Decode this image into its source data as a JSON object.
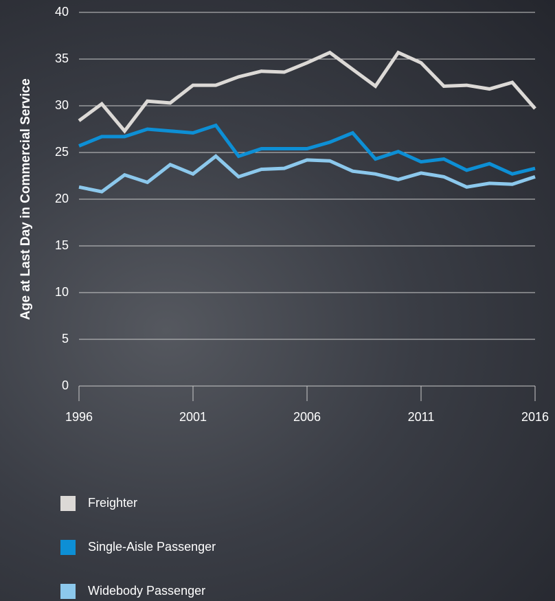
{
  "chart_data": {
    "type": "line",
    "y_label": "Age at Last Day in Commercial Service",
    "x": [
      1996,
      1997,
      1998,
      1999,
      2000,
      2001,
      2002,
      2003,
      2004,
      2005,
      2006,
      2007,
      2008,
      2009,
      2010,
      2011,
      2012,
      2013,
      2014,
      2015,
      2016
    ],
    "xlim": [
      1996,
      2016
    ],
    "xticks": [
      1996,
      2001,
      2006,
      2011,
      2016
    ],
    "ylim": [
      0,
      40
    ],
    "yticks": [
      0,
      5,
      10,
      15,
      20,
      25,
      30,
      35,
      40
    ],
    "grid": true,
    "series": [
      {
        "name": "Freighter",
        "color": "#dcd9d6",
        "values": [
          28.4,
          30.2,
          27.3,
          30.5,
          30.3,
          32.2,
          32.2,
          33.1,
          33.7,
          33.6,
          34.6,
          35.7,
          33.9,
          32.1,
          35.7,
          34.6,
          32.1,
          32.2,
          31.8,
          32.5,
          29.7
        ]
      },
      {
        "name": "Single-Aisle Passenger",
        "color": "#0d8fd5",
        "values": [
          25.7,
          26.7,
          26.7,
          27.5,
          27.3,
          27.1,
          27.9,
          24.6,
          25.4,
          25.4,
          25.4,
          26.1,
          27.1,
          24.3,
          25.1,
          24.0,
          24.3,
          23.1,
          23.8,
          22.7,
          23.3
        ]
      },
      {
        "name": "Widebody Passenger",
        "color": "#8cc8ec",
        "values": [
          21.3,
          20.8,
          22.6,
          21.8,
          23.7,
          22.7,
          24.6,
          22.4,
          23.2,
          23.3,
          24.2,
          24.1,
          23.0,
          22.7,
          22.1,
          22.8,
          22.4,
          21.3,
          21.7,
          21.6,
          22.4
        ]
      }
    ]
  }
}
